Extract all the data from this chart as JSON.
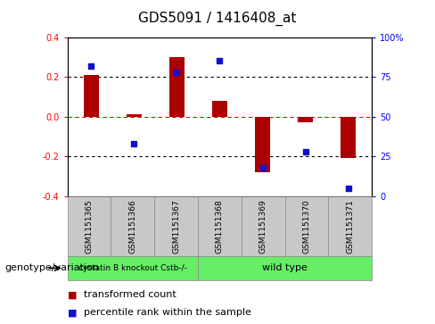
{
  "title": "GDS5091 / 1416408_at",
  "samples": [
    "GSM1151365",
    "GSM1151366",
    "GSM1151367",
    "GSM1151368",
    "GSM1151369",
    "GSM1151370",
    "GSM1151371"
  ],
  "bar_values": [
    0.21,
    0.01,
    0.3,
    0.08,
    -0.28,
    -0.03,
    -0.21
  ],
  "dot_values_pct": [
    82,
    33,
    78,
    85,
    18,
    28,
    5
  ],
  "ylim_left": [
    -0.4,
    0.4
  ],
  "ylim_right": [
    0,
    100
  ],
  "yticks_left": [
    -0.4,
    -0.2,
    0.0,
    0.2,
    0.4
  ],
  "yticks_right": [
    0,
    25,
    50,
    75,
    100
  ],
  "yticklabels_right": [
    "0",
    "25",
    "50",
    "75",
    "100%"
  ],
  "bar_color": "#aa0000",
  "dot_color": "#1111cc",
  "group1_n": 3,
  "group2_n": 4,
  "group1_label": "cystatin B knockout Cstb-/-",
  "group2_label": "wild type",
  "group_color": "#66ee66",
  "genotype_label": "genotype/variation",
  "legend_bar_label": "transformed count",
  "legend_dot_label": "percentile rank within the sample",
  "sample_box_color": "#c8c8c8",
  "title_fontsize": 11,
  "tick_fontsize": 7,
  "sample_fontsize": 6.5,
  "group_fontsize": 8,
  "legend_fontsize": 8,
  "genotype_fontsize": 8
}
